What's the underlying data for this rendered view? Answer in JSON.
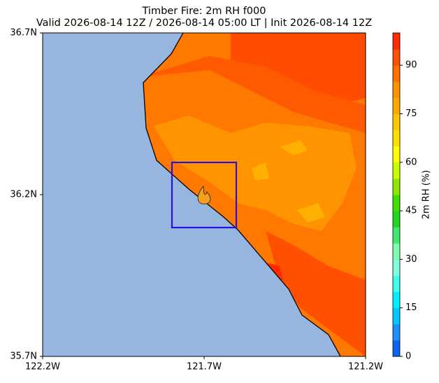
{
  "chart_data": {
    "type": "map",
    "title": "Timber Fire: 2m RH f000",
    "subtitle": "Valid 2026-08-14 12Z / 2026-08-14 05:00 LT | Init 2026-08-14 12Z",
    "xlim": [
      -122.2,
      -121.2
    ],
    "ylim": [
      35.7,
      36.7
    ],
    "xticks": [
      {
        "value": -122.2,
        "label": "122.2W"
      },
      {
        "value": -121.7,
        "label": "121.7W"
      },
      {
        "value": -121.2,
        "label": "121.2W"
      }
    ],
    "yticks": [
      {
        "value": 35.7,
        "label": "35.7N"
      },
      {
        "value": 36.2,
        "label": "36.2N"
      },
      {
        "value": 36.7,
        "label": "36.7N"
      }
    ],
    "colorbar": {
      "label": "2m RH (%)",
      "lim": [
        0,
        100
      ],
      "ticks": [
        0,
        15,
        30,
        45,
        60,
        75,
        90
      ],
      "colors": [
        "#0a64f0",
        "#1e90ff",
        "#00c8ff",
        "#00f0ff",
        "#40ffe8",
        "#80ffe0",
        "#80ffb0",
        "#40e870",
        "#20d820",
        "#40e000",
        "#90e800",
        "#c8ff00",
        "#ffff00",
        "#ffe000",
        "#ffc800",
        "#ffa800",
        "#ff9000",
        "#ff7000",
        "#ff5000",
        "#ff2a00"
      ]
    }
  }
}
